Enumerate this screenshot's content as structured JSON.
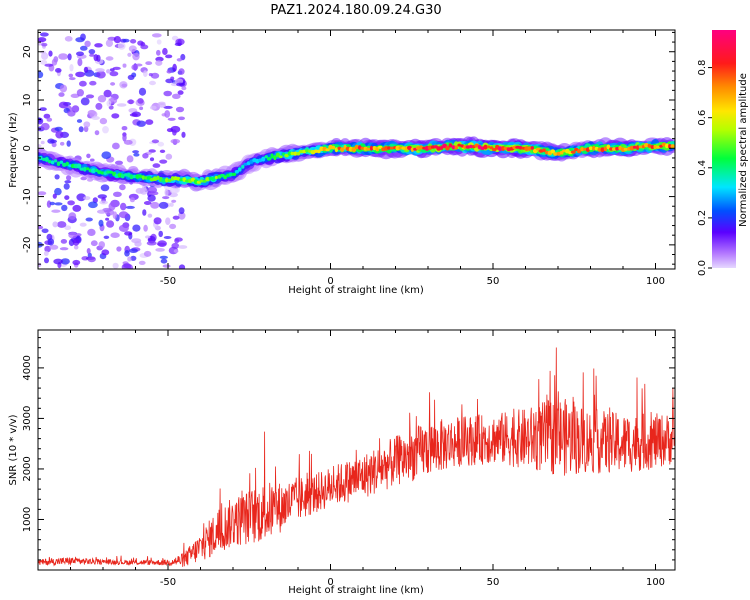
{
  "chart_data": [
    {
      "type": "heatmap",
      "title": "PAZ1.2024.180.09.24.G30",
      "xlabel": "Height of straight line (km)",
      "ylabel": "Frequency (Hz)",
      "xlim": [
        -90,
        106
      ],
      "ylim": [
        -25,
        24.5
      ],
      "x_ticks": [
        -50,
        0,
        50,
        100
      ],
      "y_ticks": [
        -20,
        -10,
        0,
        10,
        20
      ],
      "colorbar": {
        "label": "Normalized spectral amplitude",
        "range": [
          0,
          0.95
        ],
        "ticks": [
          0.0,
          0.2,
          0.4,
          0.6,
          0.8
        ],
        "colormap": "rainbow (purple → blue → cyan → green → yellow → orange → red → magenta)"
      },
      "ridge": {
        "x": [
          -90,
          -80,
          -70,
          -60,
          -50,
          -45,
          -40,
          -35,
          -30,
          -25,
          -20,
          -15,
          -10,
          0,
          10,
          20,
          30,
          40,
          50,
          60,
          70,
          80,
          90,
          100,
          106
        ],
        "frequency": [
          -2,
          -3.5,
          -5,
          -6,
          -6.5,
          -6.5,
          -7,
          -6,
          -5.5,
          -3,
          -2,
          -1.5,
          -1,
          0,
          0,
          0,
          0,
          0.5,
          0,
          0,
          -1,
          0,
          0,
          0.5,
          0.5
        ],
        "peak_amplitude": [
          0.35,
          0.4,
          0.45,
          0.45,
          0.5,
          0.55,
          0.55,
          0.5,
          0.4,
          0.3,
          0.4,
          0.5,
          0.55,
          0.7,
          0.8,
          0.75,
          0.85,
          0.9,
          0.9,
          0.85,
          0.7,
          0.75,
          0.8,
          0.8,
          0.75
        ]
      },
      "scattered_noise": {
        "x_range": [
          -90,
          -45
        ],
        "frequency_range": [
          -25,
          24
        ],
        "amplitude_range": [
          0.0,
          0.2
        ]
      }
    },
    {
      "type": "line",
      "title": "",
      "xlabel": "Height of straight line (km)",
      "ylabel": "SNR (10 * v/v)",
      "xlim": [
        -90,
        106
      ],
      "ylim": [
        0,
        4750
      ],
      "x_ticks": [
        -50,
        0,
        50,
        100
      ],
      "y_ticks": [
        1000,
        2000,
        3000,
        4000
      ],
      "series": [
        {
          "color": "#e8261c",
          "envelope": {
            "x": [
              -90,
              -80,
              -70,
              -60,
              -50,
              -45,
              -40,
              -35,
              -30,
              -25,
              -20,
              -15,
              -10,
              -5,
              0,
              10,
              20,
              30,
              40,
              50,
              60,
              70,
              80,
              90,
              100,
              106
            ],
            "mean": [
              150,
              180,
              160,
              150,
              150,
              200,
              450,
              750,
              950,
              1050,
              1150,
              1250,
              1400,
              1500,
              1650,
              1850,
              2150,
              2400,
              2550,
              2600,
              2600,
              2650,
              2550,
              2500,
              2550,
              2600
            ],
            "amplitude": [
              60,
              80,
              50,
              50,
              60,
              150,
              300,
              450,
              500,
              550,
              600,
              500,
              450,
              400,
              400,
              450,
              500,
              550,
              500,
              500,
              600,
              800,
              650,
              600,
              550,
              500
            ]
          }
        }
      ]
    }
  ]
}
